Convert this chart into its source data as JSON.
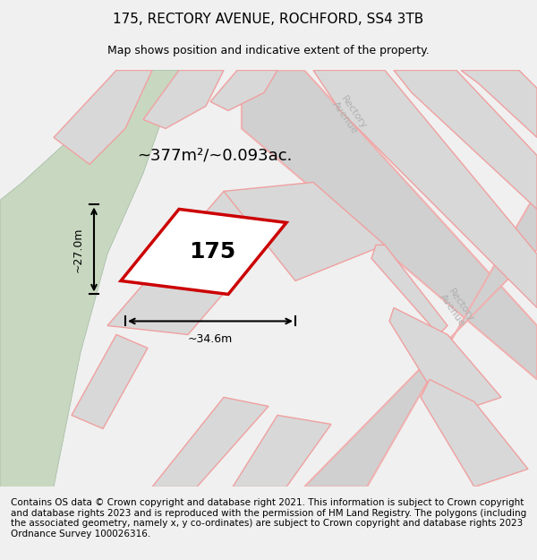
{
  "title_line1": "175, RECTORY AVENUE, ROCHFORD, SS4 3TB",
  "title_line2": "Map shows position and indicative extent of the property.",
  "property_label": "175",
  "area_label": "~377m²/~0.093ac.",
  "width_label": "~34.6m",
  "height_label": "~27.0m",
  "footer_text": "Contains OS data © Crown copyright and database right 2021. This information is subject to Crown copyright and database rights 2023 and is reproduced with the permission of HM Land Registry. The polygons (including the associated geometry, namely x, y co-ordinates) are subject to Crown copyright and database rights 2023 Ordnance Survey 100026316.",
  "bg_color": "#e8e8e8",
  "map_bg": "#e0e0e0",
  "property_fill": "#ffffff",
  "property_edge": "#cc0000",
  "road_color": "#f0b0b0",
  "road_fill": "#f5f5f5",
  "green_color": "#c8d8c0",
  "block_fill": "#d8d8d8",
  "block_edge": "#e8a0a0",
  "road_label_color": "#b0b0b0",
  "title_fontsize": 11,
  "subtitle_fontsize": 9,
  "label_fontsize": 14,
  "area_fontsize": 13,
  "footer_fontsize": 7.5
}
